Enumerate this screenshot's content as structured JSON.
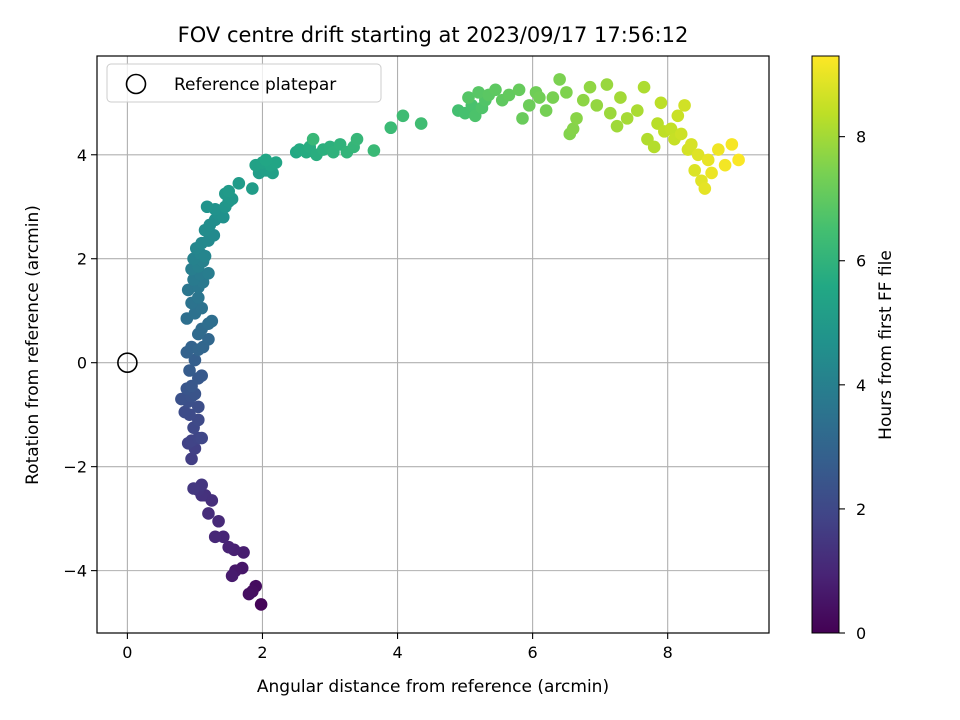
{
  "chart_data": {
    "type": "scatter",
    "title": "FOV centre drift starting at 2023/09/17 17:56:12",
    "xlabel": "Angular distance from reference (arcmin)",
    "ylabel": "Rotation from reference (arcmin)",
    "xlim": [
      -0.45,
      9.5
    ],
    "ylim": [
      -5.2,
      5.9
    ],
    "xticks": [
      0,
      2,
      4,
      6,
      8
    ],
    "yticks": [
      -4,
      -2,
      0,
      2,
      4
    ],
    "grid": true,
    "legend": {
      "placement": "top-left",
      "entries": [
        {
          "label": "Reference platepar",
          "marker": "open-circle"
        }
      ]
    },
    "reference_point": {
      "x": 0,
      "y": 0
    },
    "colorbar": {
      "label": "Hours from first FF file",
      "range": [
        0,
        9.3
      ],
      "ticks": [
        0,
        2,
        4,
        6,
        8
      ],
      "colormap": "viridis"
    },
    "series": [
      {
        "color_by": "hours",
        "points": [
          {
            "x": 1.98,
            "y": -4.65,
            "c": 0.1
          },
          {
            "x": 1.9,
            "y": -4.3,
            "c": 0.3
          },
          {
            "x": 1.85,
            "y": -4.4,
            "c": 0.35
          },
          {
            "x": 1.8,
            "y": -4.45,
            "c": 0.4
          },
          {
            "x": 1.7,
            "y": -3.95,
            "c": 0.55
          },
          {
            "x": 1.6,
            "y": -4.0,
            "c": 0.6
          },
          {
            "x": 1.55,
            "y": -4.1,
            "c": 0.7
          },
          {
            "x": 1.72,
            "y": -3.65,
            "c": 0.75
          },
          {
            "x": 1.58,
            "y": -3.6,
            "c": 0.85
          },
          {
            "x": 1.5,
            "y": -3.55,
            "c": 0.9
          },
          {
            "x": 1.42,
            "y": -3.35,
            "c": 1.0
          },
          {
            "x": 1.3,
            "y": -3.35,
            "c": 1.05
          },
          {
            "x": 1.35,
            "y": -3.05,
            "c": 1.1
          },
          {
            "x": 1.2,
            "y": -2.9,
            "c": 1.2
          },
          {
            "x": 1.25,
            "y": -2.65,
            "c": 1.25
          },
          {
            "x": 1.15,
            "y": -2.55,
            "c": 1.3
          },
          {
            "x": 1.1,
            "y": -2.55,
            "c": 1.35
          },
          {
            "x": 1.05,
            "y": -2.45,
            "c": 1.4
          },
          {
            "x": 1.1,
            "y": -2.35,
            "c": 1.45
          },
          {
            "x": 0.98,
            "y": -2.42,
            "c": 1.5
          },
          {
            "x": 0.95,
            "y": -1.85,
            "c": 1.7
          },
          {
            "x": 1.0,
            "y": -1.65,
            "c": 1.75
          },
          {
            "x": 0.9,
            "y": -1.55,
            "c": 1.8
          },
          {
            "x": 0.95,
            "y": -1.5,
            "c": 1.85
          },
          {
            "x": 1.05,
            "y": -1.45,
            "c": 1.9
          },
          {
            "x": 1.1,
            "y": -1.45,
            "c": 1.95
          },
          {
            "x": 0.98,
            "y": -1.25,
            "c": 2.0
          },
          {
            "x": 1.05,
            "y": -1.1,
            "c": 2.05
          },
          {
            "x": 0.92,
            "y": -1.0,
            "c": 2.1
          },
          {
            "x": 0.85,
            "y": -0.95,
            "c": 2.15
          },
          {
            "x": 1.05,
            "y": -0.85,
            "c": 2.2
          },
          {
            "x": 0.9,
            "y": -0.75,
            "c": 2.25
          },
          {
            "x": 0.8,
            "y": -0.7,
            "c": 2.3
          },
          {
            "x": 0.95,
            "y": -0.65,
            "c": 2.35
          },
          {
            "x": 1.0,
            "y": -0.6,
            "c": 2.4
          },
          {
            "x": 0.88,
            "y": -0.5,
            "c": 2.45
          },
          {
            "x": 0.95,
            "y": -0.45,
            "c": 2.5
          },
          {
            "x": 1.05,
            "y": -0.3,
            "c": 2.55
          },
          {
            "x": 1.1,
            "y": -0.25,
            "c": 2.6
          },
          {
            "x": 0.92,
            "y": -0.15,
            "c": 2.7
          },
          {
            "x": 1.0,
            "y": 0.05,
            "c": 2.8
          },
          {
            "x": 0.88,
            "y": 0.2,
            "c": 2.9
          },
          {
            "x": 0.95,
            "y": 0.3,
            "c": 2.95
          },
          {
            "x": 1.05,
            "y": 0.25,
            "c": 3.0
          },
          {
            "x": 1.12,
            "y": 0.3,
            "c": 3.05
          },
          {
            "x": 1.2,
            "y": 0.45,
            "c": 3.1
          },
          {
            "x": 1.05,
            "y": 0.55,
            "c": 3.2
          },
          {
            "x": 1.1,
            "y": 0.65,
            "c": 3.25
          },
          {
            "x": 1.2,
            "y": 0.75,
            "c": 3.3
          },
          {
            "x": 1.25,
            "y": 0.8,
            "c": 3.35
          },
          {
            "x": 0.88,
            "y": 0.85,
            "c": 3.4
          },
          {
            "x": 1.0,
            "y": 0.95,
            "c": 3.45
          },
          {
            "x": 1.1,
            "y": 1.05,
            "c": 3.5
          },
          {
            "x": 0.95,
            "y": 1.15,
            "c": 3.55
          },
          {
            "x": 1.05,
            "y": 1.25,
            "c": 3.6
          },
          {
            "x": 0.9,
            "y": 1.4,
            "c": 3.65
          },
          {
            "x": 1.05,
            "y": 1.45,
            "c": 3.7
          },
          {
            "x": 1.12,
            "y": 1.55,
            "c": 3.75
          },
          {
            "x": 0.98,
            "y": 1.6,
            "c": 3.8
          },
          {
            "x": 1.08,
            "y": 1.7,
            "c": 3.85
          },
          {
            "x": 1.2,
            "y": 1.72,
            "c": 3.9
          },
          {
            "x": 0.95,
            "y": 1.8,
            "c": 3.95
          },
          {
            "x": 1.05,
            "y": 1.85,
            "c": 4.0
          },
          {
            "x": 1.12,
            "y": 1.95,
            "c": 4.05
          },
          {
            "x": 0.98,
            "y": 2.0,
            "c": 4.1
          },
          {
            "x": 1.08,
            "y": 2.1,
            "c": 4.15
          },
          {
            "x": 1.15,
            "y": 2.05,
            "c": 4.2
          },
          {
            "x": 1.02,
            "y": 2.2,
            "c": 4.25
          },
          {
            "x": 1.1,
            "y": 2.3,
            "c": 4.3
          },
          {
            "x": 1.2,
            "y": 2.35,
            "c": 4.35
          },
          {
            "x": 1.28,
            "y": 2.45,
            "c": 4.4
          },
          {
            "x": 1.15,
            "y": 2.55,
            "c": 4.45
          },
          {
            "x": 1.22,
            "y": 2.65,
            "c": 4.5
          },
          {
            "x": 1.3,
            "y": 2.75,
            "c": 4.55
          },
          {
            "x": 1.35,
            "y": 2.85,
            "c": 4.6
          },
          {
            "x": 1.42,
            "y": 2.8,
            "c": 4.65
          },
          {
            "x": 1.3,
            "y": 2.95,
            "c": 4.7
          },
          {
            "x": 1.18,
            "y": 3.0,
            "c": 4.75
          },
          {
            "x": 1.45,
            "y": 3.0,
            "c": 4.8
          },
          {
            "x": 1.5,
            "y": 3.1,
            "c": 4.85
          },
          {
            "x": 1.55,
            "y": 3.15,
            "c": 4.9
          },
          {
            "x": 1.45,
            "y": 3.25,
            "c": 4.95
          },
          {
            "x": 1.5,
            "y": 3.3,
            "c": 5.0
          },
          {
            "x": 1.65,
            "y": 3.45,
            "c": 5.05
          },
          {
            "x": 1.85,
            "y": 3.35,
            "c": 5.1
          },
          {
            "x": 1.95,
            "y": 3.65,
            "c": 5.15
          },
          {
            "x": 2.05,
            "y": 3.7,
            "c": 5.2
          },
          {
            "x": 2.15,
            "y": 3.65,
            "c": 5.25
          },
          {
            "x": 1.9,
            "y": 3.8,
            "c": 5.3
          },
          {
            "x": 2.0,
            "y": 3.85,
            "c": 5.35
          },
          {
            "x": 2.12,
            "y": 3.8,
            "c": 5.4
          },
          {
            "x": 2.2,
            "y": 3.85,
            "c": 5.45
          },
          {
            "x": 2.05,
            "y": 3.9,
            "c": 5.5
          },
          {
            "x": 2.5,
            "y": 4.05,
            "c": 5.6
          },
          {
            "x": 2.55,
            "y": 4.1,
            "c": 5.65
          },
          {
            "x": 2.65,
            "y": 4.05,
            "c": 5.7
          },
          {
            "x": 2.7,
            "y": 4.15,
            "c": 5.75
          },
          {
            "x": 2.8,
            "y": 4.0,
            "c": 5.8
          },
          {
            "x": 2.9,
            "y": 4.1,
            "c": 5.85
          },
          {
            "x": 3.0,
            "y": 4.15,
            "c": 5.9
          },
          {
            "x": 3.05,
            "y": 4.05,
            "c": 5.95
          },
          {
            "x": 3.15,
            "y": 4.2,
            "c": 6.0
          },
          {
            "x": 3.25,
            "y": 4.05,
            "c": 6.05
          },
          {
            "x": 3.35,
            "y": 4.15,
            "c": 6.1
          },
          {
            "x": 3.4,
            "y": 4.3,
            "c": 6.15
          },
          {
            "x": 2.75,
            "y": 4.3,
            "c": 6.2
          },
          {
            "x": 3.65,
            "y": 4.08,
            "c": 6.25
          },
          {
            "x": 3.9,
            "y": 4.52,
            "c": 6.3
          },
          {
            "x": 4.08,
            "y": 4.75,
            "c": 6.35
          },
          {
            "x": 4.35,
            "y": 4.6,
            "c": 6.4
          },
          {
            "x": 4.9,
            "y": 4.85,
            "c": 6.5
          },
          {
            "x": 5.0,
            "y": 4.8,
            "c": 6.55
          },
          {
            "x": 5.1,
            "y": 4.95,
            "c": 6.6
          },
          {
            "x": 5.15,
            "y": 4.75,
            "c": 6.65
          },
          {
            "x": 5.25,
            "y": 4.9,
            "c": 6.7
          },
          {
            "x": 5.3,
            "y": 5.05,
            "c": 6.75
          },
          {
            "x": 5.05,
            "y": 5.1,
            "c": 6.8
          },
          {
            "x": 5.2,
            "y": 5.2,
            "c": 6.85
          },
          {
            "x": 5.35,
            "y": 5.15,
            "c": 6.9
          },
          {
            "x": 5.45,
            "y": 5.25,
            "c": 6.95
          },
          {
            "x": 5.55,
            "y": 5.05,
            "c": 7.0
          },
          {
            "x": 5.65,
            "y": 5.15,
            "c": 7.05
          },
          {
            "x": 5.8,
            "y": 5.25,
            "c": 7.1
          },
          {
            "x": 5.85,
            "y": 4.7,
            "c": 7.15
          },
          {
            "x": 5.95,
            "y": 4.95,
            "c": 7.2
          },
          {
            "x": 6.05,
            "y": 5.2,
            "c": 7.25
          },
          {
            "x": 6.1,
            "y": 5.1,
            "c": 7.3
          },
          {
            "x": 6.2,
            "y": 4.85,
            "c": 7.35
          },
          {
            "x": 6.3,
            "y": 5.1,
            "c": 7.4
          },
          {
            "x": 6.4,
            "y": 5.45,
            "c": 7.45
          },
          {
            "x": 6.5,
            "y": 5.2,
            "c": 7.5
          },
          {
            "x": 6.55,
            "y": 4.4,
            "c": 7.55
          },
          {
            "x": 6.6,
            "y": 4.5,
            "c": 7.6
          },
          {
            "x": 6.65,
            "y": 4.7,
            "c": 7.65
          },
          {
            "x": 6.75,
            "y": 5.05,
            "c": 7.7
          },
          {
            "x": 6.85,
            "y": 5.3,
            "c": 7.75
          },
          {
            "x": 6.95,
            "y": 4.95,
            "c": 7.8
          },
          {
            "x": 7.1,
            "y": 5.35,
            "c": 7.85
          },
          {
            "x": 7.15,
            "y": 4.8,
            "c": 7.9
          },
          {
            "x": 7.25,
            "y": 4.55,
            "c": 7.95
          },
          {
            "x": 7.3,
            "y": 5.1,
            "c": 8.0
          },
          {
            "x": 7.4,
            "y": 4.7,
            "c": 8.05
          },
          {
            "x": 7.55,
            "y": 4.85,
            "c": 8.1
          },
          {
            "x": 7.65,
            "y": 5.3,
            "c": 8.15
          },
          {
            "x": 7.7,
            "y": 4.3,
            "c": 8.2
          },
          {
            "x": 7.8,
            "y": 4.15,
            "c": 8.25
          },
          {
            "x": 7.85,
            "y": 4.6,
            "c": 8.3
          },
          {
            "x": 7.9,
            "y": 5.0,
            "c": 8.35
          },
          {
            "x": 7.95,
            "y": 4.45,
            "c": 8.4
          },
          {
            "x": 8.05,
            "y": 4.5,
            "c": 8.45
          },
          {
            "x": 8.1,
            "y": 4.3,
            "c": 8.5
          },
          {
            "x": 8.15,
            "y": 4.75,
            "c": 8.55
          },
          {
            "x": 8.2,
            "y": 4.4,
            "c": 8.6
          },
          {
            "x": 8.25,
            "y": 4.95,
            "c": 8.65
          },
          {
            "x": 8.3,
            "y": 4.1,
            "c": 8.7
          },
          {
            "x": 8.35,
            "y": 4.2,
            "c": 8.75
          },
          {
            "x": 8.4,
            "y": 3.7,
            "c": 8.8
          },
          {
            "x": 8.45,
            "y": 4.0,
            "c": 8.85
          },
          {
            "x": 8.5,
            "y": 3.5,
            "c": 8.9
          },
          {
            "x": 8.55,
            "y": 3.35,
            "c": 8.95
          },
          {
            "x": 8.6,
            "y": 3.9,
            "c": 9.0
          },
          {
            "x": 8.65,
            "y": 3.65,
            "c": 9.05
          },
          {
            "x": 8.75,
            "y": 4.1,
            "c": 9.1
          },
          {
            "x": 8.85,
            "y": 3.8,
            "c": 9.15
          },
          {
            "x": 8.95,
            "y": 4.2,
            "c": 9.2
          },
          {
            "x": 9.05,
            "y": 3.9,
            "c": 9.25
          }
        ]
      }
    ]
  }
}
